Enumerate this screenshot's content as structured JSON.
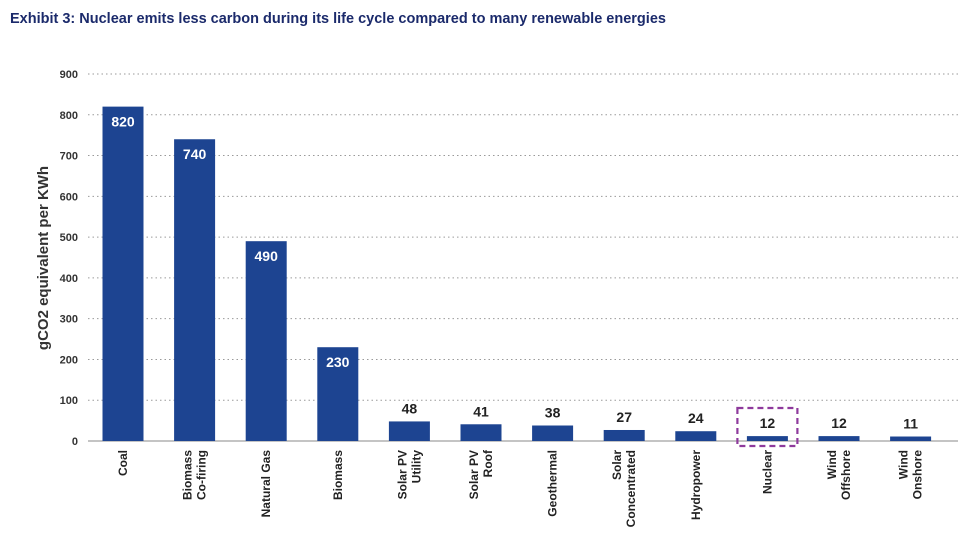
{
  "title": "Exhibit 3: Nuclear emits less carbon during its life cycle compared to many renewable energies",
  "chart_data": {
    "type": "bar",
    "title": "Exhibit 3: Nuclear emits less carbon during its life cycle compared to many renewable energies",
    "xlabel": "",
    "ylabel": "gCO2 equivalent per KWh",
    "ylim": [
      0,
      900
    ],
    "yticks": [
      0,
      100,
      200,
      300,
      400,
      500,
      600,
      700,
      800,
      900
    ],
    "grid": "horizontal dotted",
    "categories": [
      [
        "Coal"
      ],
      [
        "Biomass",
        "Co-firing"
      ],
      [
        "Natural Gas"
      ],
      [
        "Biomass"
      ],
      [
        "Solar PV",
        "Utility"
      ],
      [
        "Solar PV",
        "Roof"
      ],
      [
        "Geothermal"
      ],
      [
        "Solar",
        "Concentrated"
      ],
      [
        "Hydropower"
      ],
      [
        "Nuclear"
      ],
      [
        "Wind",
        "Offshore"
      ],
      [
        "Wind",
        "Onshore"
      ]
    ],
    "values": [
      820,
      740,
      490,
      230,
      48,
      41,
      38,
      27,
      24,
      12,
      12,
      11
    ],
    "highlight": "Nuclear",
    "bar_color": "#1d4491",
    "highlight_color": "#8e3a9c"
  }
}
